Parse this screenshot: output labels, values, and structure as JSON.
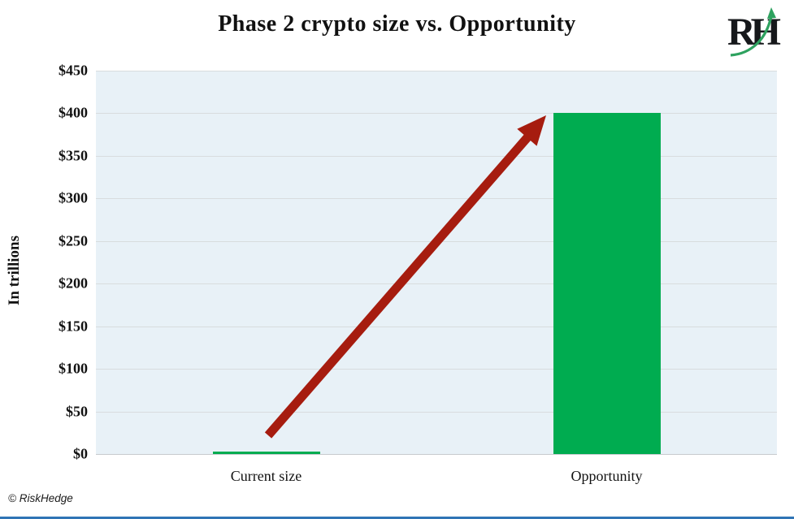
{
  "chart_data": {
    "type": "bar",
    "title": "Phase 2 crypto size vs. Opportunity",
    "categories": [
      "Current size",
      "Opportunity"
    ],
    "values": [
      1,
      400
    ],
    "xlabel": "",
    "ylabel": "In trillions",
    "ylim": [
      0,
      450
    ],
    "ytick_interval": 50,
    "ytick_labels": [
      "$450",
      "$400",
      "$350",
      "$300",
      "$250",
      "$200",
      "$150",
      "$100",
      "$50",
      "$0"
    ],
    "grid": true,
    "legend": "none",
    "annotations": [
      "thick dark-red arrow rising from the tiny Current size bar to the top of the Opportunity bar"
    ],
    "colors": {
      "bar": "#00AC50",
      "arrow": "#A61C0F",
      "plot_background": "#E8F1F7",
      "gridline": "#D8DCDE",
      "baseline": "#C7CBCE",
      "text": "#111111",
      "bottom_rule": "#2F74B5",
      "logo_green": "#2EA25F",
      "logo_text": "#16181B"
    }
  },
  "logo": {
    "letters": [
      "R",
      "H"
    ]
  },
  "footer": {
    "credit": "© RiskHedge"
  }
}
